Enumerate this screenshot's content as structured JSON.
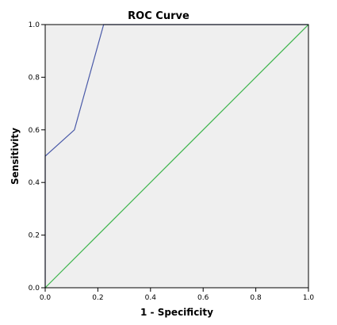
{
  "chart_data": {
    "type": "line",
    "title": "ROC Curve",
    "xlabel": "1 - Specificity",
    "ylabel": "Sensitivity",
    "xlim": [
      0.0,
      1.0
    ],
    "ylim": [
      0.0,
      1.0
    ],
    "x_ticks": [
      "0.0",
      "0.2",
      "0.4",
      "0.6",
      "0.8",
      "1.0"
    ],
    "y_ticks": [
      "0.0",
      "0.2",
      "0.4",
      "0.6",
      "0.8",
      "1.0"
    ],
    "grid": false,
    "legend": "none",
    "plot_background": "#efefef",
    "series": [
      {
        "color": "#4a5aa8",
        "x": [
          0.0,
          0.0,
          0.111,
          0.222,
          1.0
        ],
        "y": [
          0.0,
          0.5,
          0.6,
          1.0,
          1.0
        ]
      },
      {
        "color": "#3cb44b",
        "x": [
          0.0,
          1.0
        ],
        "y": [
          0.0,
          1.0
        ]
      }
    ]
  }
}
